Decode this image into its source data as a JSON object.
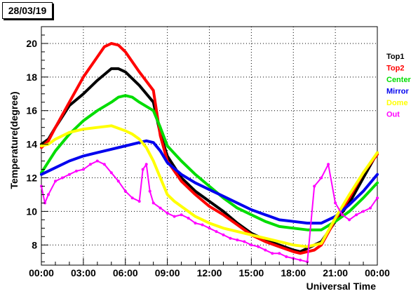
{
  "date_label": "28/03/19",
  "chart_data": {
    "type": "line",
    "title": "",
    "xlabel": "Universal Time",
    "ylabel": "Temperature(degree)",
    "xlim": [
      0,
      24
    ],
    "ylim": [
      6.8,
      21
    ],
    "x_ticks": [
      "00:00",
      "03:00",
      "06:00",
      "09:00",
      "12:00",
      "15:00",
      "18:00",
      "21:00",
      "00:00"
    ],
    "y_ticks": [
      8,
      10,
      12,
      14,
      16,
      18,
      20
    ],
    "grid": true,
    "legend_position": "right",
    "series": [
      {
        "name": "Top1",
        "color": "#000000",
        "x": [
          0,
          0.5,
          1,
          2,
          3,
          4,
          5,
          5.5,
          6,
          7,
          8,
          8.5,
          9,
          10,
          11,
          12,
          13,
          14,
          15,
          16,
          17,
          18,
          18.5,
          19,
          19.5,
          20,
          21,
          22,
          23,
          24
        ],
        "y": [
          14.0,
          14.3,
          15.0,
          16.3,
          17.0,
          17.8,
          18.5,
          18.5,
          18.3,
          17.5,
          16.5,
          14.6,
          13.3,
          12.0,
          11.2,
          10.6,
          10.0,
          9.3,
          8.7,
          8.3,
          8.0,
          7.7,
          7.6,
          7.8,
          8.0,
          8.2,
          9.4,
          10.5,
          12.0,
          13.5
        ]
      },
      {
        "name": "Top2",
        "color": "#ff0000",
        "x": [
          0,
          0.5,
          1,
          2,
          3,
          4,
          4.5,
          5,
          5.5,
          6,
          7,
          8,
          8.5,
          9,
          10,
          11,
          12,
          13,
          14,
          15,
          16,
          17,
          18,
          18.5,
          19,
          19.5,
          20,
          21,
          22,
          23,
          24
        ],
        "y": [
          13.8,
          14.2,
          15.0,
          16.5,
          18.0,
          19.2,
          19.8,
          20.0,
          19.9,
          19.5,
          18.3,
          17.2,
          14.5,
          13.0,
          11.8,
          11.0,
          10.3,
          9.8,
          9.2,
          8.6,
          8.2,
          7.9,
          7.6,
          7.5,
          7.6,
          7.7,
          8.0,
          9.5,
          10.8,
          12.3,
          13.4
        ]
      },
      {
        "name": "Center",
        "color": "#00dd00",
        "x": [
          0,
          1,
          2,
          3,
          4,
          5,
          5.5,
          6,
          6.5,
          7,
          8,
          8.5,
          9,
          10,
          11,
          12,
          13,
          14,
          15,
          16,
          17,
          18,
          19,
          19.5,
          20,
          21,
          22,
          23,
          24
        ],
        "y": [
          12.3,
          13.6,
          14.6,
          15.4,
          16.0,
          16.5,
          16.8,
          16.9,
          16.8,
          16.5,
          16.0,
          15.0,
          13.9,
          13.0,
          12.2,
          11.5,
          10.8,
          10.2,
          9.8,
          9.4,
          9.1,
          9.0,
          8.9,
          8.9,
          8.9,
          9.4,
          10.0,
          10.8,
          11.7
        ]
      },
      {
        "name": "Mirror",
        "color": "#0000ee",
        "x": [
          0,
          1,
          2,
          3,
          4,
          5,
          6,
          7,
          7.5,
          8,
          8.5,
          9,
          10,
          11,
          12,
          13,
          14,
          15,
          16,
          17,
          18,
          19,
          20,
          21,
          22,
          23,
          24
        ],
        "y": [
          12.2,
          12.6,
          13.0,
          13.3,
          13.5,
          13.7,
          13.9,
          14.1,
          14.2,
          14.1,
          13.6,
          12.9,
          12.2,
          11.7,
          11.3,
          10.9,
          10.5,
          10.1,
          9.8,
          9.5,
          9.4,
          9.3,
          9.3,
          9.7,
          10.4,
          11.2,
          12.2
        ]
      },
      {
        "name": "Dome",
        "color": "#ffff00",
        "x": [
          0,
          0.5,
          1,
          2,
          3,
          4,
          5,
          6,
          6.5,
          7,
          7.5,
          8,
          8.5,
          9,
          9.5,
          10,
          11,
          12,
          13,
          14,
          15,
          16,
          17,
          18,
          19,
          20,
          21,
          22,
          23,
          24
        ],
        "y": [
          13.9,
          14.0,
          14.3,
          14.7,
          14.9,
          15.0,
          15.1,
          14.8,
          14.6,
          14.3,
          13.8,
          13.0,
          12.0,
          11.0,
          10.6,
          10.3,
          9.7,
          9.3,
          9.0,
          8.8,
          8.6,
          8.4,
          8.2,
          8.0,
          7.9,
          8.1,
          9.6,
          11.0,
          12.3,
          13.5
        ]
      },
      {
        "name": "Out",
        "color": "#ff00ff",
        "x": [
          0,
          0.25,
          0.5,
          1,
          1.5,
          2,
          2.5,
          3,
          3.5,
          4,
          4.5,
          5,
          5.5,
          6,
          6.5,
          7,
          7.25,
          7.5,
          7.75,
          8,
          8.5,
          9,
          9.5,
          10,
          10.5,
          11,
          11.5,
          12,
          12.5,
          13,
          13.5,
          14,
          14.5,
          15,
          15.5,
          16,
          16.5,
          17,
          17.5,
          18,
          18.5,
          19,
          19.5,
          20,
          20.5,
          21,
          21.5,
          22,
          22.5,
          23,
          23.5,
          24
        ],
        "y": [
          11.5,
          10.5,
          11.0,
          11.8,
          12.0,
          12.2,
          12.4,
          12.5,
          12.8,
          13.0,
          12.8,
          12.3,
          11.8,
          11.2,
          10.8,
          10.6,
          12.5,
          12.8,
          11.2,
          10.5,
          10.2,
          9.9,
          9.7,
          9.8,
          9.6,
          9.3,
          9.2,
          9.0,
          8.8,
          8.6,
          8.4,
          8.3,
          8.2,
          8.0,
          7.9,
          7.7,
          7.5,
          7.5,
          7.3,
          7.2,
          7.1,
          7.0,
          11.5,
          12.0,
          12.8,
          10.5,
          9.8,
          9.5,
          9.8,
          10.0,
          10.2,
          10.8
        ]
      }
    ]
  }
}
